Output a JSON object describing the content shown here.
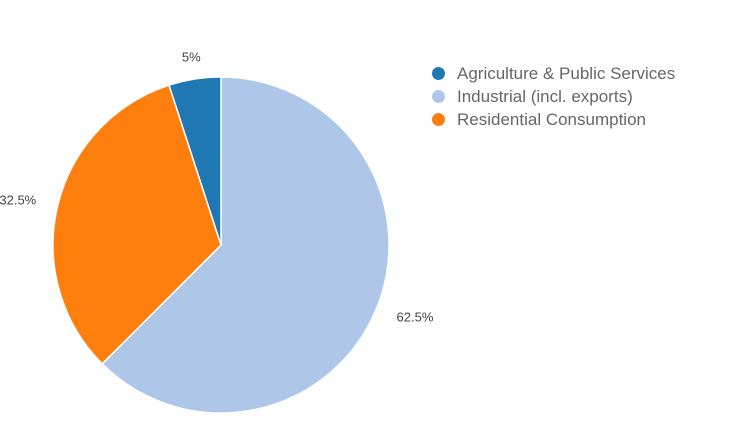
{
  "chart_data": {
    "type": "pie",
    "title": "",
    "start_angle_deg": 0,
    "direction": "clockwise",
    "legend_position": "top-right",
    "slices": [
      {
        "label": "Industrial (incl. exports)",
        "value": 62.5,
        "value_label": "62.5%",
        "color": "#aec7e8"
      },
      {
        "label": "Residential Consumption",
        "value": 32.5,
        "value_label": "32.5%",
        "color": "#ff7f0e"
      },
      {
        "label": "Agriculture & Public Services",
        "value": 5,
        "value_label": "5%",
        "color": "#1f77b4"
      }
    ],
    "legend": [
      {
        "label": "Agriculture & Public Services",
        "color": "#1f77b4"
      },
      {
        "label": "Industrial (incl. exports)",
        "color": "#aec7e8"
      },
      {
        "label": "Residential Consumption",
        "color": "#ff7f0e"
      }
    ]
  }
}
